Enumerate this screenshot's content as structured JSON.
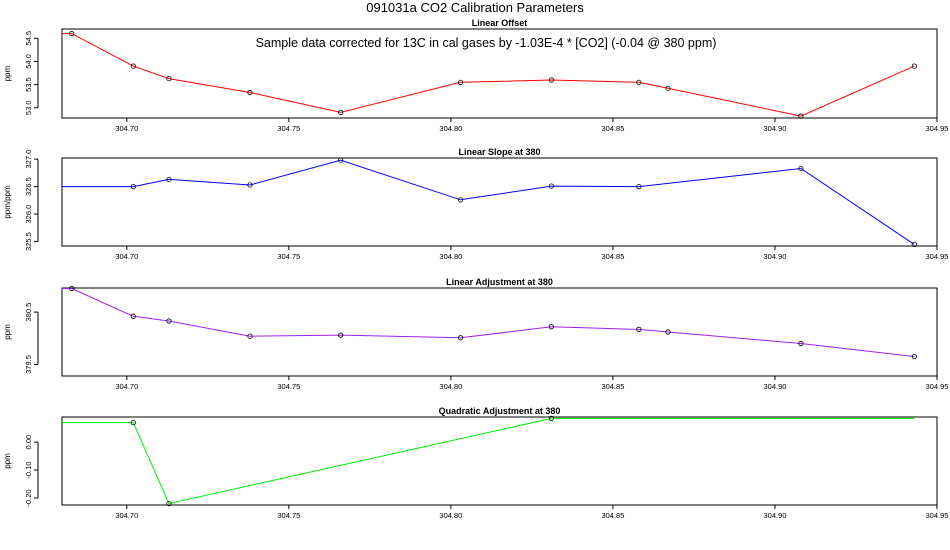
{
  "title": "091031a   CO2 Calibration Parameters",
  "chart_data": [
    {
      "type": "line",
      "title": "Linear Offset",
      "ylabel": "ppm",
      "annotation": "Sample data corrected for 13C in cal gases by -1.03E-4 * [CO2] (-0.04 @ 380 ppm)",
      "color": "#ff0000",
      "xlim": [
        304.68,
        304.95
      ],
      "ylim": [
        52.78,
        54.7
      ],
      "xticks": [
        304.7,
        304.75,
        304.8,
        304.85,
        304.9,
        304.95
      ],
      "xtick_labels": [
        "304.70",
        "304.75",
        "304.80",
        "304.85",
        "304.90",
        "304.95"
      ],
      "yticks": [
        53.0,
        53.5,
        54.0,
        54.5
      ],
      "ytick_labels": [
        "53.0",
        "53.5",
        "54.0",
        "54.5"
      ],
      "x": [
        304.68,
        304.683,
        304.702,
        304.713,
        304.738,
        304.766,
        304.803,
        304.831,
        304.858,
        304.867,
        304.908,
        304.943
      ],
      "y": [
        54.6,
        54.6,
        53.9,
        53.63,
        53.33,
        52.9,
        53.55,
        53.6,
        53.55,
        53.42,
        52.82,
        53.9
      ],
      "markers_from": 1
    },
    {
      "type": "line",
      "title": "Linear Slope at 380",
      "ylabel": "ppm/ppm",
      "color": "#0000ff",
      "xlim": [
        304.68,
        304.95
      ],
      "ylim": [
        325.42,
        327.02
      ],
      "xticks": [
        304.7,
        304.75,
        304.8,
        304.85,
        304.9,
        304.95
      ],
      "xtick_labels": [
        "304.70",
        "304.75",
        "304.80",
        "304.85",
        "304.90",
        "304.95"
      ],
      "yticks": [
        325.5,
        326.0,
        326.5,
        327.0
      ],
      "ytick_labels": [
        "325.5",
        "326.0",
        "326.5",
        "327.0"
      ],
      "x": [
        304.68,
        304.702,
        304.713,
        304.738,
        304.766,
        304.803,
        304.831,
        304.858,
        304.908,
        304.943
      ],
      "y": [
        326.5,
        326.5,
        326.63,
        326.53,
        326.98,
        326.26,
        326.51,
        326.5,
        326.83,
        325.45
      ],
      "markers_from": 1
    },
    {
      "type": "line",
      "title": "Linear Adjustment at 380",
      "ylabel": "ppm",
      "color": "#a020f0",
      "xlim": [
        304.68,
        304.95
      ],
      "ylim": [
        379.28,
        380.96
      ],
      "xticks": [
        304.7,
        304.75,
        304.8,
        304.85,
        304.9,
        304.95
      ],
      "xtick_labels": [
        "304.70",
        "304.75",
        "304.80",
        "304.85",
        "304.90",
        "304.95"
      ],
      "yticks": [
        379.5,
        380.5
      ],
      "ytick_labels": [
        "379.5",
        "380.5"
      ],
      "x": [
        304.68,
        304.683,
        304.702,
        304.713,
        304.738,
        304.766,
        304.803,
        304.831,
        304.858,
        304.867,
        304.908,
        304.943
      ],
      "y": [
        380.95,
        380.95,
        380.42,
        380.33,
        380.04,
        380.06,
        380.01,
        380.22,
        380.17,
        380.12,
        379.9,
        379.65
      ],
      "markers_from": 1
    },
    {
      "type": "line",
      "title": "Quadratic Adjustment at 380",
      "ylabel": "ppm",
      "color": "#00ee00",
      "xlim": [
        304.68,
        304.95
      ],
      "ylim": [
        -0.225,
        0.09
      ],
      "xticks": [
        304.7,
        304.75,
        304.8,
        304.85,
        304.9,
        304.95
      ],
      "xtick_labels": [
        "304.70",
        "304.75",
        "304.80",
        "304.85",
        "304.90",
        "304.95"
      ],
      "yticks": [
        -0.2,
        -0.1,
        0.0
      ],
      "ytick_labels": [
        "-0.20",
        "-0.10",
        "0.00"
      ],
      "x": [
        304.68,
        304.702,
        304.713,
        304.831,
        304.943
      ],
      "y": [
        0.07,
        0.07,
        -0.22,
        0.085,
        0.085
      ],
      "markers": [
        304.702,
        304.713,
        304.831
      ]
    }
  ]
}
